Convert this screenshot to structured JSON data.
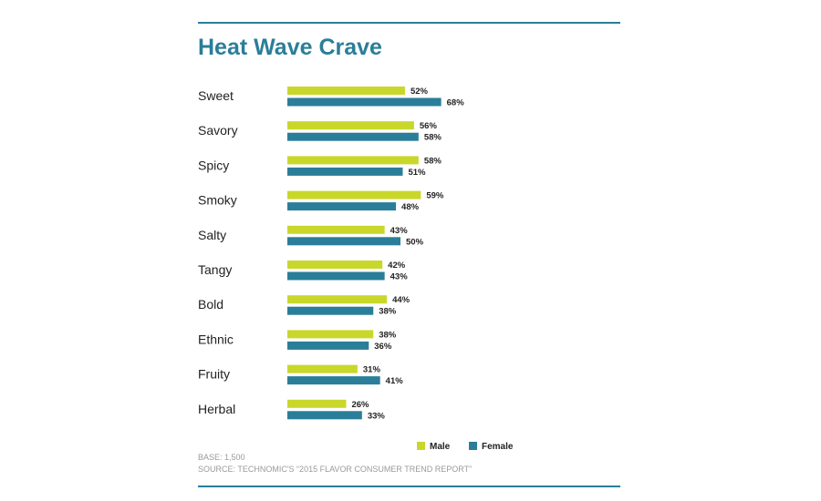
{
  "colors": {
    "accent": "#2a7e99",
    "male": "#c9d72b",
    "female": "#2a7e99",
    "note": "#9a9a9a"
  },
  "chart_data": {
    "type": "bar",
    "orientation": "horizontal",
    "title": "Heat Wave Crave",
    "categories": [
      "Sweet",
      "Savory",
      "Spicy",
      "Smoky",
      "Salty",
      "Tangy",
      "Bold",
      "Ethnic",
      "Fruity",
      "Herbal"
    ],
    "series": [
      {
        "name": "Male",
        "values": [
          52,
          56,
          58,
          59,
          43,
          42,
          44,
          38,
          31,
          26
        ]
      },
      {
        "name": "Female",
        "values": [
          68,
          58,
          51,
          48,
          50,
          43,
          38,
          36,
          41,
          33
        ]
      }
    ],
    "value_suffix": "%",
    "xlim": [
      0,
      100
    ],
    "grid": false,
    "legend_position": "bottom-right"
  },
  "notes": {
    "base": "BASE: 1,500",
    "source": "SOURCE: TECHNOMIC'S “2015 FLAVOR CONSUMER TREND REPORT”"
  }
}
